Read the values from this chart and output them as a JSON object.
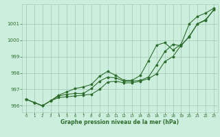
{
  "xlabel": "Graphe pression niveau de la mer (hPa)",
  "background_color": "#cceedd",
  "grid_color": "#aaccbb",
  "line_color": "#2d6e2d",
  "xlim": [
    -0.5,
    23.5
  ],
  "ylim": [
    995.6,
    1002.2
  ],
  "yticks": [
    996,
    997,
    998,
    999,
    1000,
    1001
  ],
  "xticks": [
    0,
    1,
    2,
    3,
    4,
    5,
    6,
    7,
    8,
    9,
    10,
    11,
    12,
    13,
    14,
    15,
    16,
    17,
    18,
    19,
    20,
    21,
    22,
    23
  ],
  "hours": [
    0,
    1,
    2,
    3,
    4,
    5,
    6,
    7,
    8,
    9,
    10,
    11,
    12,
    13,
    14,
    15,
    16,
    17,
    18,
    19,
    20,
    21,
    22,
    23
  ],
  "line1": [
    996.4,
    996.2,
    996.0,
    996.3,
    996.5,
    996.55,
    996.6,
    996.65,
    996.7,
    997.0,
    997.45,
    997.5,
    997.4,
    997.4,
    997.5,
    997.65,
    997.95,
    998.7,
    999.0,
    999.7,
    1000.2,
    1001.0,
    1001.2,
    1001.85
  ],
  "line2": [
    996.4,
    996.2,
    996.0,
    996.3,
    996.6,
    996.7,
    996.75,
    996.75,
    997.05,
    997.5,
    997.75,
    997.7,
    997.5,
    997.5,
    997.55,
    997.75,
    998.5,
    999.3,
    999.75,
    999.65,
    1000.25,
    1001.0,
    1001.25,
    1001.85
  ],
  "line3": [
    996.4,
    996.2,
    996.0,
    996.3,
    996.65,
    996.85,
    997.05,
    997.15,
    997.3,
    997.8,
    998.1,
    997.85,
    997.55,
    997.55,
    997.85,
    998.75,
    999.7,
    999.85,
    999.4,
    999.75,
    1001.0,
    1001.45,
    1001.65,
    1001.95
  ]
}
